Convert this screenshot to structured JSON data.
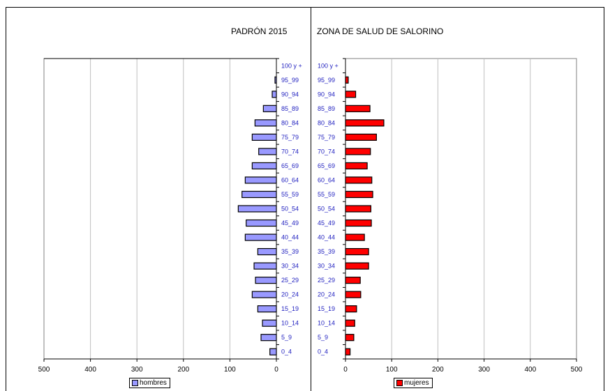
{
  "titles": {
    "left": "PADRÓN 2015",
    "right": "ZONA DE SALUD  DE  SALORINO"
  },
  "colors": {
    "hombres": "#9999ff",
    "mujeres": "#ff0000",
    "category_label": "#1f1fbf",
    "grid": "#bfbfbf"
  },
  "chart_data": [
    {
      "type": "bar",
      "orientation": "horizontal",
      "side": "left",
      "categories": [
        "0_4",
        "5_9",
        "10_14",
        "15_19",
        "20_24",
        "25_29",
        "30_34",
        "35_39",
        "40_44",
        "45_49",
        "50_54",
        "55_59",
        "60_64",
        "65_69",
        "70_74",
        "75_79",
        "80_84",
        "85_89",
        "90_94",
        "95_99",
        "100 y +"
      ],
      "series": [
        {
          "name": "hombres",
          "values": [
            14,
            33,
            30,
            40,
            52,
            45,
            48,
            40,
            67,
            65,
            82,
            74,
            67,
            52,
            38,
            52,
            46,
            28,
            9,
            3,
            0
          ]
        }
      ],
      "xlim": [
        500,
        0
      ],
      "ticks": [
        "500",
        "400",
        "300",
        "200",
        "100",
        "0"
      ],
      "grid": true,
      "legend": "bottom"
    },
    {
      "type": "bar",
      "orientation": "horizontal",
      "side": "right",
      "categories": [
        "0_4",
        "5_9",
        "10_14",
        "15_19",
        "20_24",
        "25_29",
        "30_34",
        "35_39",
        "40_44",
        "45_49",
        "50_54",
        "55_59",
        "60_64",
        "65_69",
        "70_74",
        "75_79",
        "80_84",
        "85_89",
        "90_94",
        "95_99",
        "100 y +"
      ],
      "series": [
        {
          "name": "mujeres",
          "values": [
            10,
            18,
            20,
            24,
            33,
            32,
            50,
            50,
            41,
            56,
            55,
            59,
            57,
            47,
            54,
            67,
            83,
            53,
            22,
            6,
            0
          ]
        }
      ],
      "xlim": [
        0,
        500
      ],
      "ticks": [
        "0",
        "100",
        "200",
        "300",
        "400",
        "500"
      ],
      "grid": true,
      "legend": "bottom"
    }
  ]
}
